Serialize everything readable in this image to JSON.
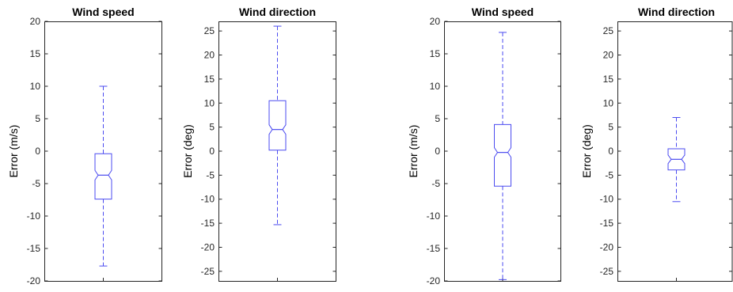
{
  "chart_data": [
    {
      "type": "boxplot",
      "title": "Wind speed",
      "ylabel": "Error (m/s)",
      "ylim": [
        -20,
        20
      ],
      "yticks": [
        "20",
        "15",
        "10",
        "5",
        "0",
        "-5",
        "-10",
        "-15",
        "-20"
      ],
      "box": {
        "whisker_high": 10,
        "q3": -0.4,
        "median": -3.7,
        "q1": -7.4,
        "whisker_low": -17.7
      }
    },
    {
      "type": "boxplot",
      "title": "Wind direction",
      "ylabel": "Error (deg)",
      "ylim": [
        -27,
        27
      ],
      "yticks": [
        "25",
        "20",
        "15",
        "10",
        "5",
        "0",
        "-5",
        "-10",
        "-15",
        "-20",
        "-25"
      ],
      "box": {
        "whisker_high": 26,
        "q3": 10.5,
        "median": 4.5,
        "q1": 0.2,
        "whisker_low": -15.3
      }
    },
    {
      "type": "boxplot",
      "title": "Wind speed",
      "ylabel": "Error (m/s)",
      "ylim": [
        -20,
        20
      ],
      "yticks": [
        "20",
        "15",
        "10",
        "5",
        "0",
        "-5",
        "-10",
        "-15",
        "-20"
      ],
      "box": {
        "whisker_high": 18.3,
        "q3": 4.1,
        "median": -0.2,
        "q1": -5.4,
        "whisker_low": -19.8
      }
    },
    {
      "type": "boxplot",
      "title": "Wind direction",
      "ylabel": "Error (deg)",
      "ylim": [
        -27,
        27
      ],
      "yticks": [
        "25",
        "20",
        "15",
        "10",
        "5",
        "0",
        "-5",
        "-10",
        "-15",
        "-20",
        "-25"
      ],
      "box": {
        "whisker_high": 7,
        "q3": 0.5,
        "median": -1.7,
        "q1": -3.9,
        "whisker_low": -10.5
      }
    }
  ],
  "colors": {
    "box": "#4b4bf0",
    "axis": "#262626"
  }
}
